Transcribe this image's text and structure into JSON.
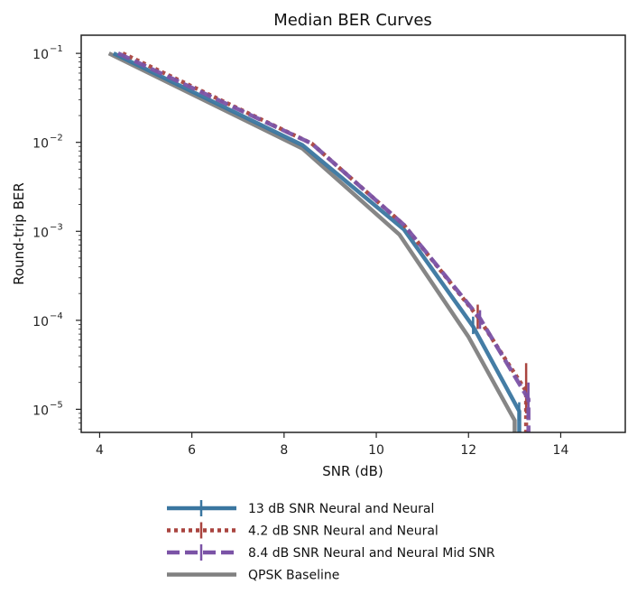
{
  "chart_data": {
    "type": "line",
    "title": "Median BER Curves",
    "xlabel": "SNR (dB)",
    "ylabel": "Round-trip BER",
    "xlim": [
      3.6,
      15.4
    ],
    "ylim": [
      5.5e-06,
      0.16
    ],
    "yscale": "log",
    "xticks": [
      4,
      6,
      8,
      10,
      12,
      14
    ],
    "xtick_labels": [
      "4",
      "6",
      "8",
      "10",
      "12",
      "14"
    ],
    "yticks": [
      0.1,
      0.01,
      0.001,
      0.0001,
      1e-05
    ],
    "ytick_labels": [
      {
        "base": "10",
        "exp": "−1"
      },
      {
        "base": "10",
        "exp": "−2"
      },
      {
        "base": "10",
        "exp": "−3"
      },
      {
        "base": "10",
        "exp": "−4"
      },
      {
        "base": "10",
        "exp": "−5"
      }
    ],
    "grid": false,
    "legend_position": "below",
    "series": [
      {
        "name": "13 dB SNR Neural and Neural",
        "color": "#3a76a0",
        "style": "solid",
        "x": [
          4.3,
          8.4,
          10.6,
          12.1,
          13.1,
          13.1
        ],
        "y": [
          0.1,
          0.0093,
          0.00105,
          8.5e-05,
          9.5e-06,
          5.5e-06
        ],
        "err_low": [
          0.1,
          0.0093,
          0.00105,
          7e-05,
          7.5e-06,
          5.5e-06
        ],
        "err_high": [
          0.1,
          0.0093,
          0.00105,
          0.00011,
          1.2e-05,
          5.5e-06
        ],
        "errorbars": [
          false,
          false,
          false,
          true,
          true,
          false
        ]
      },
      {
        "name": "4.2 dB SNR Neural and Neural",
        "color": "#a9443f",
        "style": "dotted",
        "x": [
          4.5,
          8.6,
          10.6,
          12.2,
          13.25,
          13.25
        ],
        "y": [
          0.1,
          0.0097,
          0.00118,
          0.00011,
          1.6e-05,
          5.5e-06
        ],
        "err_low": [
          0.1,
          0.0097,
          0.00118,
          8e-05,
          9e-06,
          5.5e-06
        ],
        "err_high": [
          0.1,
          0.0097,
          0.00118,
          0.00015,
          3.3e-05,
          5.5e-06
        ],
        "errorbars": [
          false,
          false,
          false,
          true,
          true,
          false
        ]
      },
      {
        "name": "8.4 dB SNR Neural and Neural Mid SNR",
        "color": "#7b53a6",
        "style": "dashed",
        "x": [
          4.4,
          8.6,
          10.6,
          12.25,
          13.3,
          13.3
        ],
        "y": [
          0.1,
          0.0097,
          0.00118,
          0.000105,
          1.3e-05,
          5.5e-06
        ],
        "err_low": [
          0.1,
          0.0097,
          0.00118,
          8e-05,
          8e-06,
          5.5e-06
        ],
        "err_high": [
          0.1,
          0.0097,
          0.00118,
          0.00013,
          2e-05,
          5.5e-06
        ],
        "errorbars": [
          false,
          false,
          false,
          true,
          true,
          false
        ]
      },
      {
        "name": "QPSK Baseline",
        "color": "#808080",
        "style": "solid",
        "x": [
          4.2,
          8.4,
          10.5,
          12.0,
          13.0,
          13.0
        ],
        "y": [
          0.1,
          0.0085,
          0.00092,
          6.5e-05,
          7.5e-06,
          5.5e-06
        ],
        "errorbars": [
          false,
          false,
          false,
          false,
          false,
          false
        ]
      }
    ]
  }
}
